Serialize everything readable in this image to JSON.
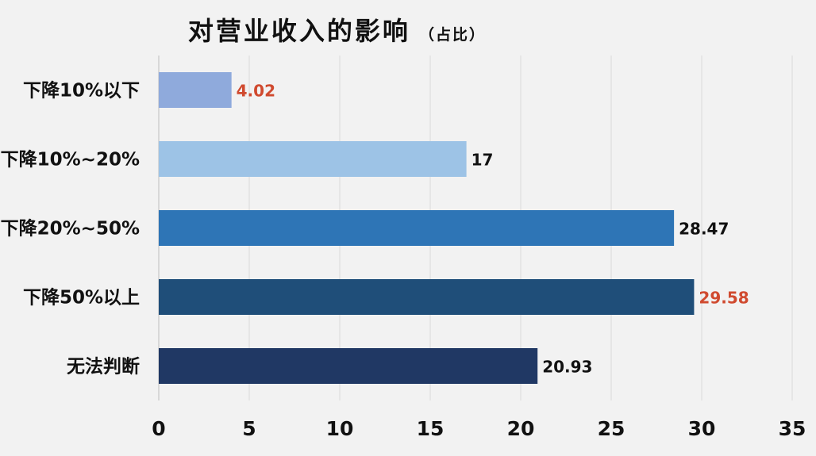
{
  "chart_data": {
    "type": "bar",
    "orientation": "horizontal",
    "title": "对营业收入的影响",
    "subtitle": "（占比）",
    "categories": [
      "下降10%以下",
      "下降10%~20%",
      "下降20%~50%",
      "下降50%以上",
      "无法判断"
    ],
    "values": [
      4.02,
      17,
      28.47,
      29.58,
      20.93
    ],
    "value_labels": [
      "4.02",
      "17",
      "28.47",
      "29.58",
      "20.93"
    ],
    "bar_colors": [
      "#8faadc",
      "#9dc3e6",
      "#2e75b6",
      "#1f4e79",
      "#203864"
    ],
    "label_colors": [
      "#d04a2f",
      "#111111",
      "#111111",
      "#d04a2f",
      "#111111"
    ],
    "xlim": [
      0,
      35
    ],
    "ticks": [
      "0",
      "5",
      "10",
      "15",
      "20",
      "25",
      "30",
      "35"
    ],
    "grid": true,
    "xlabel": "",
    "ylabel": ""
  }
}
